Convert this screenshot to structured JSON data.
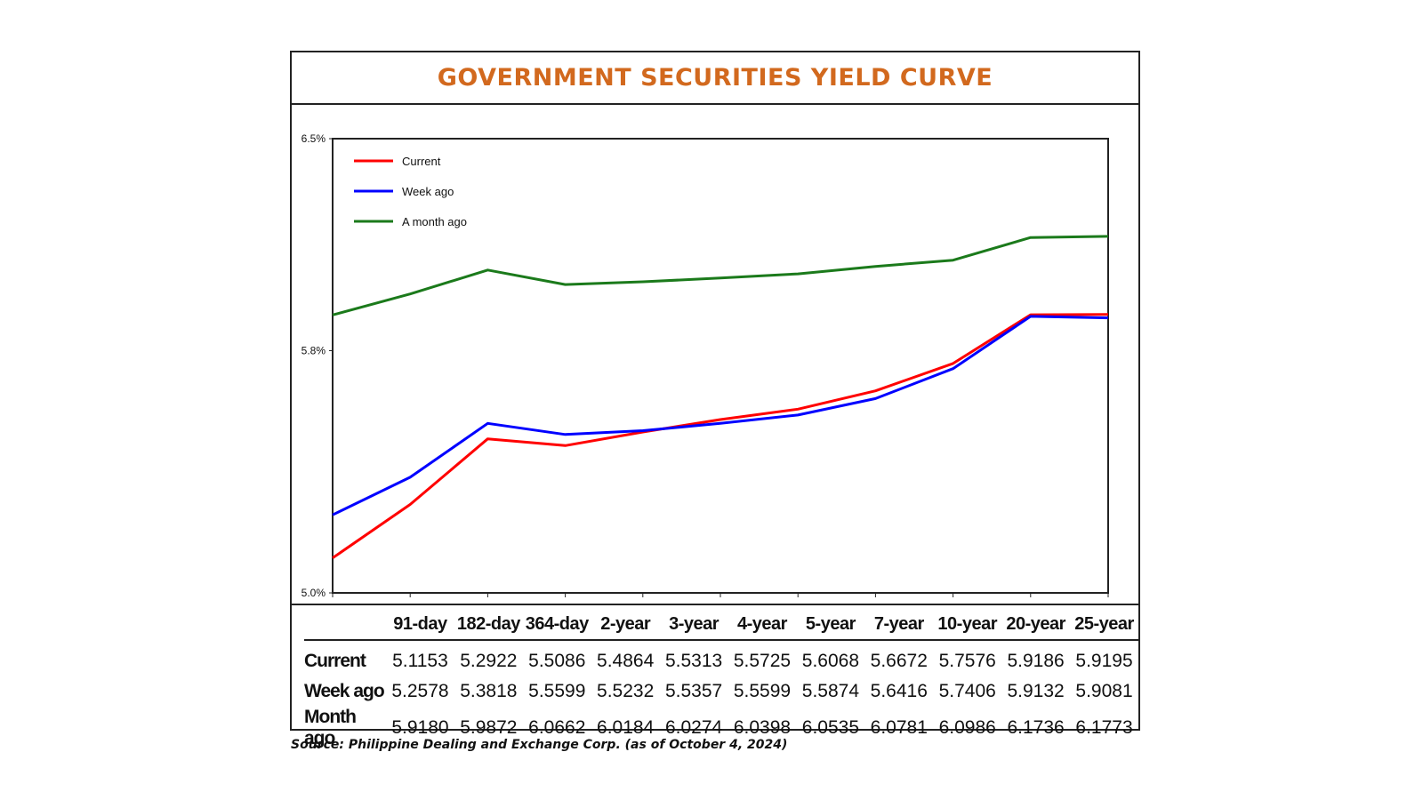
{
  "title": "GOVERNMENT SECURITIES YIELD CURVE",
  "source": "Source: Philippine Dealing and Exchange Corp. (as of October 4, 2024)",
  "chart_data": {
    "type": "line",
    "categories": [
      "91-day",
      "182-day",
      "364-day",
      "2-year",
      "3-year",
      "4-year",
      "5-year",
      "7-year",
      "10-year",
      "20-year",
      "25-year"
    ],
    "y_ticks": [
      "6.5%",
      "5.8%",
      "5.0%"
    ],
    "ylim": [
      5.0,
      6.5
    ],
    "legend_position": "top-left",
    "series": [
      {
        "name": "Current",
        "color": "#FF0000",
        "values": [
          5.1153,
          5.2922,
          5.5086,
          5.4864,
          5.5313,
          5.5725,
          5.6068,
          5.6672,
          5.7576,
          5.9186,
          5.9195
        ]
      },
      {
        "name": "Week ago",
        "color": "#0000FF",
        "values": [
          5.2578,
          5.3818,
          5.5599,
          5.5232,
          5.5357,
          5.5599,
          5.5874,
          5.6416,
          5.7406,
          5.9132,
          5.9081
        ]
      },
      {
        "name": "A month ago",
        "color": "#1B7A1B",
        "values": [
          5.918,
          5.9872,
          6.0662,
          6.0184,
          6.0274,
          6.0398,
          6.0535,
          6.0781,
          6.0986,
          6.1736,
          6.1773
        ]
      }
    ]
  },
  "table": {
    "headers": [
      "91-day",
      "182-day",
      "364-day",
      "2-year",
      "3-year",
      "4-year",
      "5-year",
      "7-year",
      "10-year",
      "20-year",
      "25-year"
    ],
    "rows": [
      {
        "label": "Current",
        "values": [
          "5.1153",
          "5.2922",
          "5.5086",
          "5.4864",
          "5.5313",
          "5.5725",
          "5.6068",
          "5.6672",
          "5.7576",
          "5.9186",
          "5.9195"
        ]
      },
      {
        "label": "Week ago",
        "values": [
          "5.2578",
          "5.3818",
          "5.5599",
          "5.5232",
          "5.5357",
          "5.5599",
          "5.5874",
          "5.6416",
          "5.7406",
          "5.9132",
          "5.9081"
        ]
      },
      {
        "label": "Month ago",
        "values": [
          "5.9180",
          "5.9872",
          "6.0662",
          "6.0184",
          "6.0274",
          "6.0398",
          "6.0535",
          "6.0781",
          "6.0986",
          "6.1736",
          "6.1773"
        ]
      }
    ]
  }
}
